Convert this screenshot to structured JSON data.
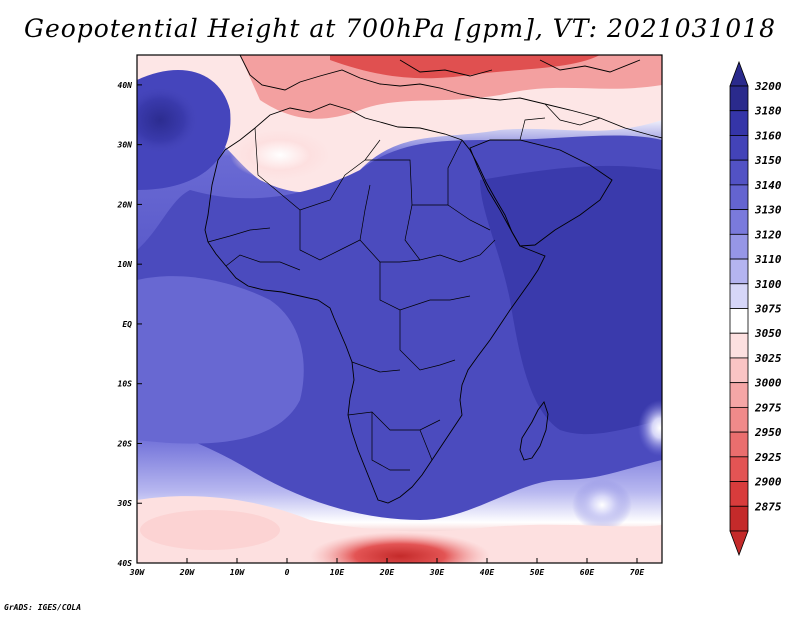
{
  "title": "Geopotential Height at 700hPa [gpm], VT: 2021031018",
  "footer": "GrADS: IGES/COLA",
  "map": {
    "lon_range": [
      -30,
      75
    ],
    "lat_range": [
      -40,
      45
    ],
    "lon_ticks": [
      "30W",
      "20W",
      "10W",
      "0",
      "10E",
      "20E",
      "30E",
      "40E",
      "50E",
      "60E",
      "70E"
    ],
    "lat_ticks": [
      "40N",
      "30N",
      "20N",
      "10N",
      "EQ",
      "10S",
      "20S",
      "30S",
      "40S"
    ]
  },
  "colorbar": {
    "labels": [
      "3200",
      "3180",
      "3160",
      "3150",
      "3140",
      "3130",
      "3120",
      "3110",
      "3100",
      "3075",
      "3050",
      "3025",
      "3000",
      "2975",
      "2950",
      "2925",
      "2900",
      "2875"
    ],
    "colors": [
      "#2a2a8c",
      "#3535a8",
      "#4343b8",
      "#5252c4",
      "#6464d0",
      "#7a7adc",
      "#9696e6",
      "#b4b4f0",
      "#d6d6f8",
      "#ffffff",
      "#fde0e0",
      "#fac4c4",
      "#f5a6a6",
      "#f08a8a",
      "#ea6e6e",
      "#e35454",
      "#d83c3c",
      "#c42a2a"
    ],
    "top_color": "#2a2a8c",
    "bottom_color": "#c42a2a"
  }
}
